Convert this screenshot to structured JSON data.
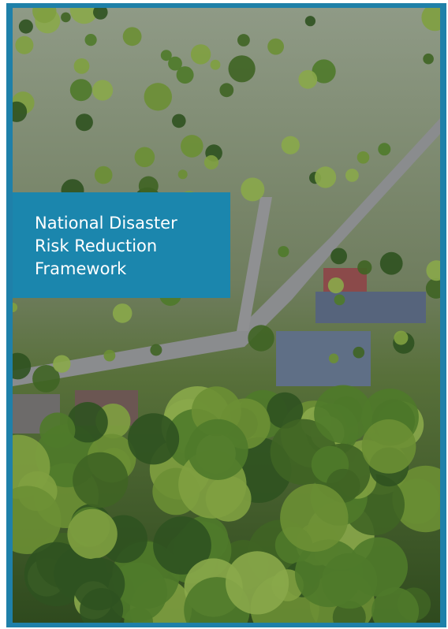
{
  "cover": {
    "title_lines": [
      "National Disaster",
      "Risk Reduction",
      "Framework"
    ]
  }
}
